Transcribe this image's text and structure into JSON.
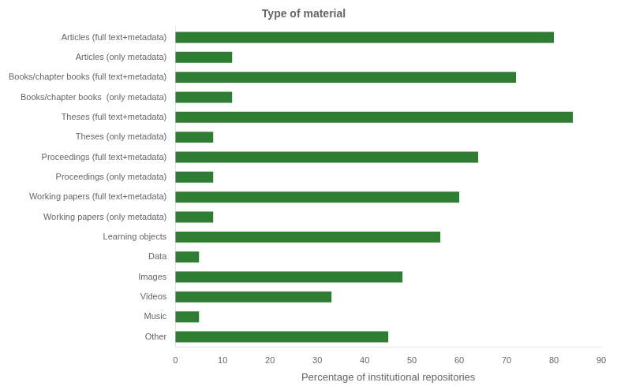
{
  "chart_data": {
    "type": "bar",
    "orientation": "horizontal",
    "title": "Type of material",
    "categories": [
      "Articles (full text+metadata)",
      "Articles (only metadata)",
      "Books/chapter books (full text+metadata)",
      "Books/chapter books  (only metadata)",
      "Theses (full text+metadata)",
      "Theses (only metadata)",
      "Proceedings (full text+metadata)",
      "Proceedings (only metadata)",
      "Working papers (full text+metadata)",
      "Working papers (only metadata)",
      "Learning objects",
      "Data",
      "Images",
      "Videos",
      "Music",
      "Other"
    ],
    "values": [
      80,
      12,
      72,
      12,
      84,
      8,
      64,
      8,
      60,
      8,
      56,
      5,
      48,
      33,
      5,
      45
    ],
    "color": "#2e7d32",
    "xlabel": "Percentage of institutional repositories",
    "xlim": [
      0,
      90
    ],
    "xticks": [
      0,
      10,
      20,
      30,
      40,
      50,
      60,
      70,
      80,
      90
    ],
    "grid": false
  }
}
